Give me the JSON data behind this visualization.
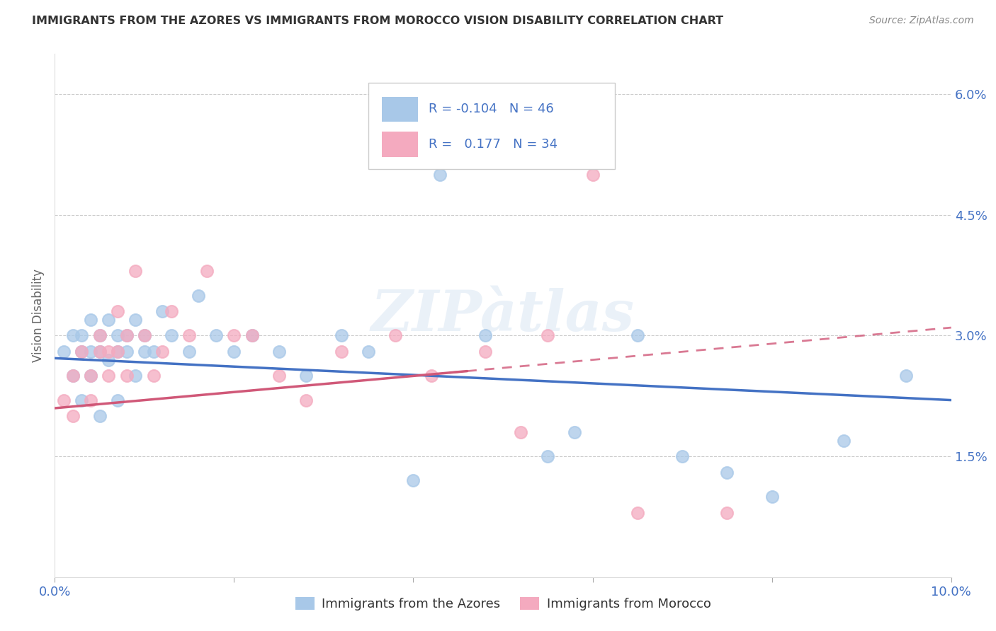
{
  "title": "IMMIGRANTS FROM THE AZORES VS IMMIGRANTS FROM MOROCCO VISION DISABILITY CORRELATION CHART",
  "source": "Source: ZipAtlas.com",
  "ylabel": "Vision Disability",
  "ytick_labels": [
    "1.5%",
    "3.0%",
    "4.5%",
    "6.0%"
  ],
  "ytick_values": [
    0.015,
    0.03,
    0.045,
    0.06
  ],
  "xlim": [
    0.0,
    0.1
  ],
  "ylim": [
    0.0,
    0.065
  ],
  "legend_blue_r": "-0.104",
  "legend_blue_n": "46",
  "legend_pink_r": "0.177",
  "legend_pink_n": "34",
  "blue_color": "#a8c8e8",
  "pink_color": "#f4aabf",
  "blue_line_color": "#4472c4",
  "pink_line_color": "#d05878",
  "blue_text_color": "#4472c4",
  "background_color": "#ffffff",
  "blue_x": [
    0.001,
    0.002,
    0.002,
    0.003,
    0.003,
    0.003,
    0.004,
    0.004,
    0.004,
    0.005,
    0.005,
    0.005,
    0.006,
    0.006,
    0.007,
    0.007,
    0.007,
    0.008,
    0.008,
    0.009,
    0.009,
    0.01,
    0.01,
    0.011,
    0.012,
    0.013,
    0.015,
    0.016,
    0.018,
    0.02,
    0.022,
    0.025,
    0.028,
    0.032,
    0.035,
    0.04,
    0.043,
    0.048,
    0.055,
    0.058,
    0.065,
    0.07,
    0.075,
    0.08,
    0.088,
    0.095
  ],
  "blue_y": [
    0.028,
    0.025,
    0.03,
    0.03,
    0.028,
    0.022,
    0.032,
    0.028,
    0.025,
    0.03,
    0.028,
    0.02,
    0.032,
    0.027,
    0.03,
    0.028,
    0.022,
    0.03,
    0.028,
    0.025,
    0.032,
    0.028,
    0.03,
    0.028,
    0.033,
    0.03,
    0.028,
    0.035,
    0.03,
    0.028,
    0.03,
    0.028,
    0.025,
    0.03,
    0.028,
    0.012,
    0.05,
    0.03,
    0.015,
    0.018,
    0.03,
    0.015,
    0.013,
    0.01,
    0.017,
    0.025
  ],
  "pink_x": [
    0.001,
    0.002,
    0.002,
    0.003,
    0.004,
    0.004,
    0.005,
    0.005,
    0.006,
    0.006,
    0.007,
    0.007,
    0.008,
    0.008,
    0.009,
    0.01,
    0.011,
    0.012,
    0.013,
    0.015,
    0.017,
    0.02,
    0.022,
    0.025,
    0.028,
    0.032,
    0.038,
    0.042,
    0.048,
    0.052,
    0.055,
    0.06,
    0.065,
    0.075
  ],
  "pink_y": [
    0.022,
    0.025,
    0.02,
    0.028,
    0.025,
    0.022,
    0.03,
    0.028,
    0.028,
    0.025,
    0.033,
    0.028,
    0.03,
    0.025,
    0.038,
    0.03,
    0.025,
    0.028,
    0.033,
    0.03,
    0.038,
    0.03,
    0.03,
    0.025,
    0.022,
    0.028,
    0.03,
    0.025,
    0.028,
    0.018,
    0.03,
    0.05,
    0.008,
    0.008
  ],
  "blue_line_x0": 0.0,
  "blue_line_y0": 0.0272,
  "blue_line_x1": 0.1,
  "blue_line_y1": 0.022,
  "pink_line_x0": 0.0,
  "pink_line_y0": 0.021,
  "pink_line_x1": 0.1,
  "pink_line_y1": 0.031
}
